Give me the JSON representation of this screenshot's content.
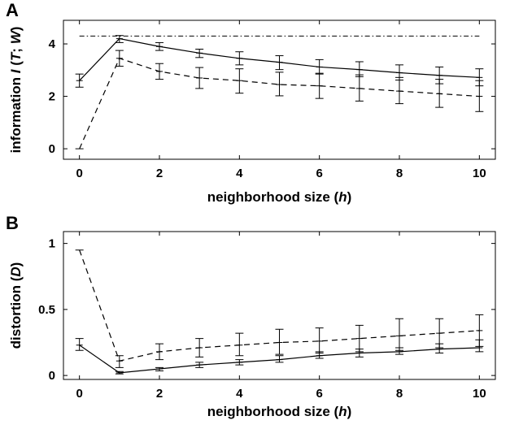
{
  "chart_data": [
    {
      "panel": "A",
      "type": "line",
      "xlabel": [
        "neighborhood size (",
        "h",
        ")"
      ],
      "ylabel": [
        "information ",
        "I",
        " (",
        "T",
        "; ",
        "W",
        ")"
      ],
      "xlim": [
        -0.4,
        10.4
      ],
      "ylim": [
        -0.4,
        4.9
      ],
      "xticks": [
        "0",
        "2",
        "4",
        "6",
        "8",
        "10"
      ],
      "yticks": [
        "0",
        "2",
        "4"
      ],
      "x": [
        0,
        1,
        2,
        3,
        4,
        5,
        6,
        7,
        8,
        9,
        10
      ],
      "series": [
        {
          "style": "solid",
          "values": [
            2.6,
            4.2,
            3.9,
            3.65,
            3.45,
            3.3,
            3.12,
            3.02,
            2.9,
            2.8,
            2.72
          ],
          "err_low": [
            2.35,
            4.05,
            3.75,
            3.48,
            3.2,
            3.02,
            2.85,
            2.75,
            2.62,
            2.48,
            2.4
          ],
          "err_high": [
            2.85,
            4.32,
            4.05,
            3.8,
            3.7,
            3.55,
            3.4,
            3.32,
            3.2,
            3.12,
            3.05
          ]
        },
        {
          "style": "dashed",
          "values": [
            0.0,
            3.45,
            2.95,
            2.7,
            2.6,
            2.45,
            2.4,
            2.3,
            2.2,
            2.1,
            2.0
          ],
          "err_low": [
            null,
            3.15,
            2.65,
            2.3,
            2.12,
            2.02,
            1.92,
            1.82,
            1.72,
            1.58,
            1.42
          ],
          "err_high": [
            null,
            3.75,
            3.25,
            3.1,
            3.05,
            2.92,
            2.88,
            2.82,
            2.72,
            2.65,
            2.6
          ]
        },
        {
          "style": "dash-dot",
          "values": [
            4.3,
            4.3,
            4.3,
            4.3,
            4.3,
            4.3,
            4.3,
            4.3,
            4.3,
            4.3,
            4.3
          ]
        }
      ]
    },
    {
      "panel": "B",
      "type": "line",
      "xlabel": [
        "neighborhood size (",
        "h",
        ")"
      ],
      "ylabel": [
        "distortion (",
        "D",
        ")"
      ],
      "xlim": [
        -0.4,
        10.4
      ],
      "ylim": [
        -0.03,
        1.09
      ],
      "xticks": [
        "0",
        "2",
        "4",
        "6",
        "8",
        "10"
      ],
      "yticks": [
        "0",
        "0.5",
        "1"
      ],
      "x": [
        0,
        1,
        2,
        3,
        4,
        5,
        6,
        7,
        8,
        9,
        10
      ],
      "series": [
        {
          "style": "solid",
          "values": [
            0.23,
            0.02,
            0.05,
            0.08,
            0.1,
            0.12,
            0.15,
            0.17,
            0.18,
            0.2,
            0.21
          ],
          "err_low": [
            0.19,
            0.012,
            0.035,
            0.06,
            0.08,
            0.1,
            0.13,
            0.14,
            0.16,
            0.17,
            0.18
          ],
          "err_high": [
            0.28,
            0.03,
            0.06,
            0.1,
            0.12,
            0.15,
            0.18,
            0.2,
            0.21,
            0.24,
            0.27
          ]
        },
        {
          "style": "dashed",
          "values": [
            0.95,
            0.11,
            0.18,
            0.21,
            0.23,
            0.25,
            0.26,
            0.28,
            0.3,
            0.32,
            0.34
          ],
          "err_low": [
            null,
            0.06,
            0.12,
            0.14,
            0.15,
            0.16,
            0.17,
            0.18,
            0.19,
            0.21,
            0.22
          ],
          "err_high": [
            null,
            0.15,
            0.24,
            0.28,
            0.32,
            0.35,
            0.36,
            0.38,
            0.43,
            0.43,
            0.46
          ]
        }
      ]
    }
  ]
}
